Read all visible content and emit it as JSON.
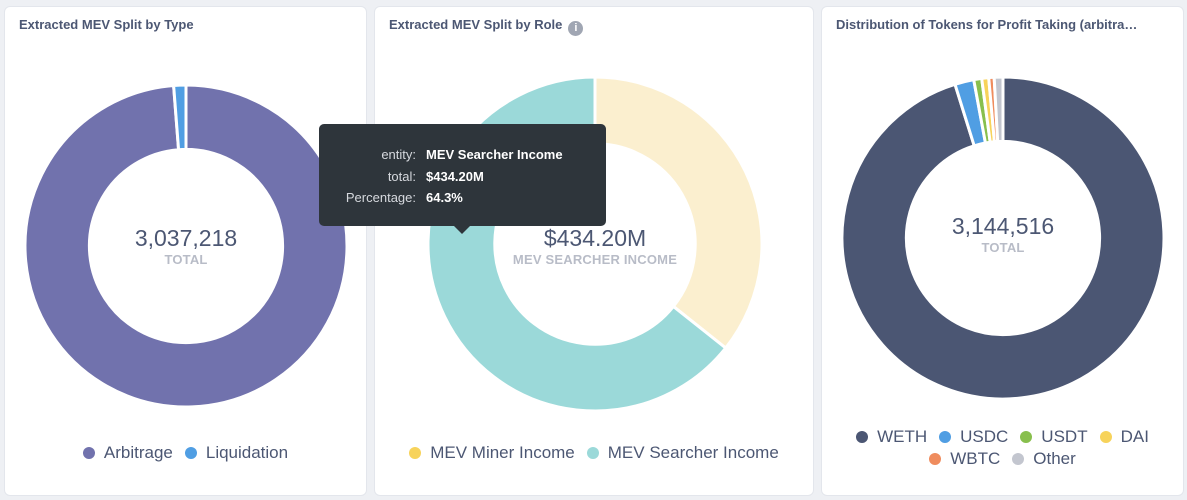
{
  "chart_data": [
    {
      "type": "pie",
      "title": "Extracted MEV Split by Type",
      "center_value": "3,037,218",
      "center_label": "TOTAL",
      "categories": [
        "Arbitrage",
        "Liquidation"
      ],
      "values": [
        3000000,
        37218
      ],
      "colors": [
        "#7172ad",
        "#509ee3"
      ]
    },
    {
      "type": "pie",
      "title": "Extracted MEV Split by Role",
      "center_value": "$434.20M",
      "center_label": "MEV SEARCHER INCOME",
      "categories": [
        "MEV Miner Income",
        "MEV Searcher Income"
      ],
      "values": [
        35.7,
        64.3
      ],
      "colors": [
        "#fbefcf",
        "#9bd9d9"
      ],
      "legend_colors": [
        "#f7d35b",
        "#9bd9d9"
      ]
    },
    {
      "type": "pie",
      "title": "Distribution of Tokens for Profit Taking (arbitra…",
      "center_value": "3,144,516",
      "center_label": "TOTAL",
      "categories": [
        "WETH",
        "USDC",
        "USDT",
        "DAI",
        "WBTC",
        "Other"
      ],
      "values": [
        2993000,
        60000,
        25000,
        22000,
        17000,
        27516
      ],
      "colors": [
        "#4b5673",
        "#509ee3",
        "#88bf4d",
        "#f7d35b",
        "#ef8c5e",
        "#c3c6cf"
      ]
    }
  ],
  "tooltip": {
    "rows": [
      {
        "key": "entity:",
        "value": "MEV Searcher Income"
      },
      {
        "key": "total:",
        "value": "$434.20M"
      },
      {
        "key": "Percentage:",
        "value": "64.3%"
      }
    ]
  },
  "icons": {
    "info": "info-icon"
  }
}
